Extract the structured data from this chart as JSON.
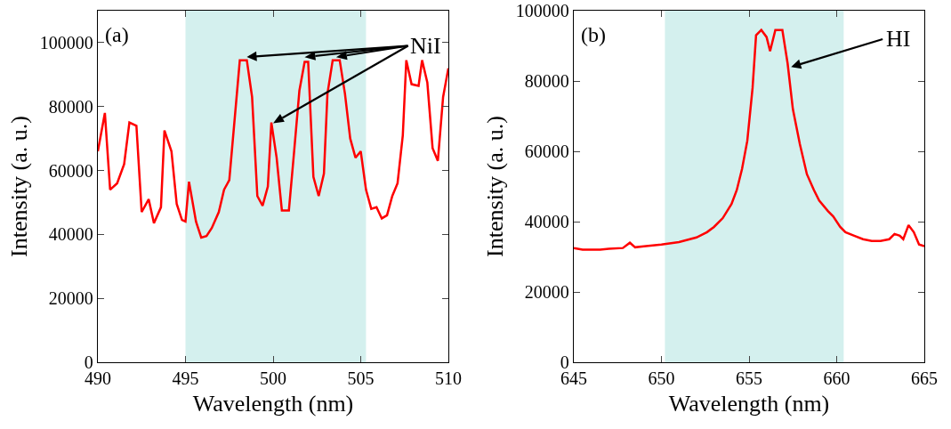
{
  "chart_data": [
    {
      "type": "line",
      "xlabel": "Wavelength (nm)",
      "ylabel": "Intensity (a. u.)",
      "xlim": [
        490,
        510
      ],
      "ylim": [
        0,
        110000
      ],
      "xticks": [
        490,
        495,
        500,
        505,
        510
      ],
      "yticks": [
        0,
        20000,
        40000,
        60000,
        80000,
        100000
      ],
      "grid": false,
      "line_style": "solid",
      "x": [
        490.0,
        490.4,
        490.7,
        491.1,
        491.5,
        491.8,
        492.2,
        492.5,
        492.9,
        493.2,
        493.6,
        493.8,
        494.2,
        494.5,
        494.8,
        495.0,
        495.2,
        495.6,
        495.9,
        496.2,
        496.5,
        496.9,
        497.2,
        497.5,
        497.9,
        498.1,
        498.5,
        498.8,
        499.1,
        499.4,
        499.7,
        499.9,
        500.2,
        500.5,
        500.9,
        501.2,
        501.5,
        501.8,
        502.0,
        502.3,
        502.6,
        502.9,
        503.1,
        503.4,
        503.8,
        504.1,
        504.4,
        504.7,
        505.0,
        505.3,
        505.6,
        505.9,
        506.2,
        506.5,
        506.8,
        507.1,
        507.4,
        507.6,
        507.9,
        508.3,
        508.5,
        508.8,
        509.1,
        509.4,
        509.7,
        510.0
      ],
      "series": [
        {
          "color": "#ff0000",
          "values": [
            66000,
            78000,
            54000,
            56000,
            62000,
            75000,
            74000,
            47000,
            51000,
            43500,
            48500,
            72500,
            66000,
            49500,
            44500,
            44000,
            56500,
            44000,
            39000,
            39500,
            42000,
            47000,
            54000,
            57000,
            82000,
            94500,
            94500,
            83000,
            52000,
            49000,
            55000,
            75000,
            64000,
            47500,
            47500,
            66000,
            85000,
            94000,
            94000,
            58000,
            52000,
            59000,
            84000,
            94500,
            94500,
            84000,
            70000,
            64000,
            66000,
            54000,
            48000,
            48500,
            45000,
            46000,
            52000,
            56000,
            71000,
            94500,
            87000,
            86500,
            94500,
            87500,
            67000,
            63000,
            83000,
            92000
          ]
        }
      ],
      "bands": [
        {
          "axis": "x",
          "from": 495,
          "to": 505.3,
          "color": "#d4f0ee"
        }
      ],
      "annotations": [
        "(a)",
        {
          "text": "NiI",
          "x": 498.5,
          "y": 95500
        }
      ]
    },
    {
      "type": "line",
      "xlabel": "Wavelength (nm)",
      "ylabel": "Intensity (a. u.)",
      "xlim": [
        645,
        665
      ],
      "ylim": [
        0,
        100000
      ],
      "xticks": [
        645,
        650,
        655,
        660,
        665
      ],
      "yticks": [
        0,
        20000,
        40000,
        60000,
        80000,
        100000
      ],
      "grid": false,
      "line_style": "solid",
      "x": [
        645,
        645.5,
        646.5,
        647,
        647.8,
        648.2,
        648.5,
        649,
        650,
        651,
        652,
        652.6,
        653,
        653.5,
        654,
        654.3,
        654.6,
        654.9,
        655.2,
        655.4,
        655.7,
        656,
        656.2,
        656.5,
        656.9,
        657.2,
        657.5,
        657.9,
        658.3,
        658.7,
        659,
        659.5,
        659.8,
        660.2,
        660.5,
        661,
        661.5,
        662,
        662.5,
        663,
        663.3,
        663.6,
        663.8,
        664.1,
        664.4,
        664.7,
        665
      ],
      "series": [
        {
          "color": "#ff0000",
          "values": [
            32500,
            32000,
            32000,
            32300,
            32500,
            34000,
            32700,
            33000,
            33500,
            34200,
            35500,
            37000,
            38500,
            41000,
            45000,
            49000,
            55000,
            63000,
            78000,
            93000,
            94500,
            92500,
            88500,
            94500,
            94500,
            85000,
            72000,
            62000,
            53500,
            49000,
            46000,
            43000,
            41500,
            38500,
            37000,
            36000,
            35000,
            34500,
            34500,
            35000,
            36500,
            36000,
            35000,
            39000,
            37000,
            33500,
            33000
          ]
        }
      ],
      "bands": [
        {
          "axis": "x",
          "from": 650.2,
          "to": 660.4,
          "color": "#d4f0ee"
        }
      ],
      "annotations": [
        "(b)",
        {
          "text": "HI",
          "x": 657.4,
          "y": 84000
        }
      ]
    }
  ]
}
